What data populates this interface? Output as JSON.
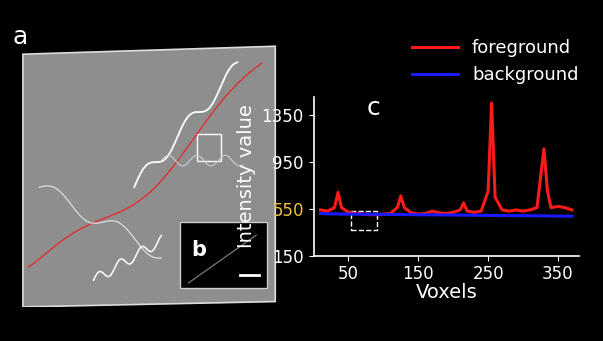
{
  "panel_labels": [
    "a",
    "b",
    "c"
  ],
  "chart_data": {
    "type": "line",
    "x_label": "Voxels",
    "y_label": "Intensity value",
    "x": [
      10,
      20,
      30,
      35,
      40,
      50,
      60,
      70,
      80,
      90,
      100,
      110,
      120,
      125,
      130,
      140,
      150,
      160,
      170,
      180,
      190,
      200,
      210,
      215,
      220,
      230,
      240,
      250,
      255,
      260,
      270,
      280,
      290,
      300,
      310,
      320,
      330,
      335,
      340,
      350,
      360,
      370
    ],
    "series": [
      {
        "name": "foreground",
        "color": "#ff1a1a",
        "values": [
          540,
          530,
          560,
          690,
          560,
          520,
          510,
          505,
          500,
          500,
          505,
          510,
          560,
          660,
          560,
          515,
          505,
          510,
          530,
          515,
          510,
          520,
          540,
          600,
          530,
          520,
          530,
          700,
          1450,
          650,
          540,
          530,
          540,
          530,
          540,
          560,
          1060,
          700,
          560,
          570,
          560,
          540
        ]
      },
      {
        "name": "background",
        "color": "#1a1aff",
        "values": [
          510,
          508,
          506,
          506,
          505,
          505,
          504,
          504,
          503,
          503,
          502,
          502,
          501,
          501,
          500,
          500,
          499,
          499,
          498,
          498,
          497,
          497,
          496,
          496,
          495,
          495,
          494,
          494,
          493,
          493,
          492,
          492,
          491,
          491,
          490,
          490,
          489,
          489,
          488,
          488,
          487,
          487
        ]
      }
    ],
    "xlim": [
      0,
      380
    ],
    "xticks": [
      50,
      150,
      250,
      350
    ],
    "ylim": [
      150,
      1500
    ],
    "yticks": [
      150,
      550,
      950,
      1350
    ],
    "legend": "upper right"
  }
}
